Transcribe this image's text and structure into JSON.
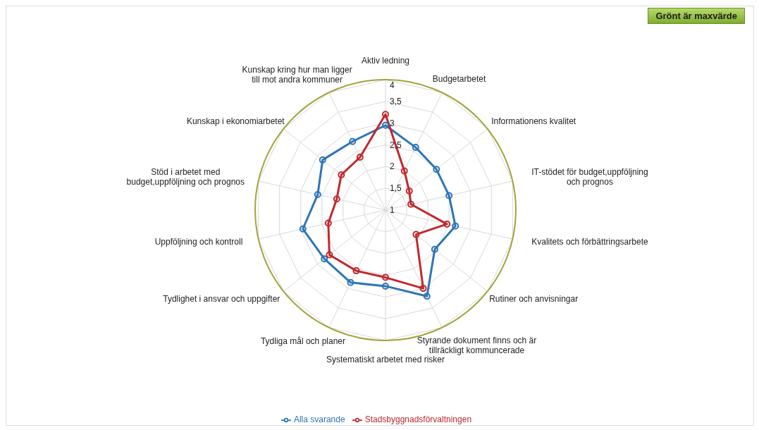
{
  "chart_data": {
    "type": "radar",
    "categories": [
      "Aktiv ledning",
      "Budgetarbetet",
      "Informationens kvalitet",
      "IT-stödet för budget,uppföljning och prognos",
      "Kvalitets och förbättringsarbete",
      "Rutiner och anvisningar",
      "Styrande dokument finns och  är tillräckligt kommuncerade",
      "Systematiskt arbetet med risker",
      "Tydliga mål och planer",
      "Tydlighet i ansvar och uppgifter",
      "Uppföljning och kontroll",
      "Stöd i arbetet med budget,uppföljning och prognos",
      "Kunskap i ekonomiarbetet",
      "Kunskap kring hur man ligger till mot andra kommuner"
    ],
    "series": [
      {
        "name": "Alla svarande",
        "color": "#2e75b6",
        "values": [
          2.95,
          2.6,
          2.5,
          2.5,
          2.65,
          2.45,
          3.2,
          2.75,
          2.85,
          2.8,
          2.95,
          2.6,
          2.85,
          2.75
        ]
      },
      {
        "name": "Stadsbyggnadsförvaltningen",
        "color": "#c0282d",
        "values": [
          3.2,
          2.0,
          1.7,
          1.6,
          2.45,
          1.9,
          3.0,
          2.55,
          2.55,
          2.65,
          2.35,
          2.15,
          2.3,
          2.35
        ]
      }
    ],
    "ylim": [
      1,
      4
    ],
    "yticks": [
      1,
      {
        "value": 1.5,
        "label": "1,5"
      },
      2,
      {
        "value": 2.5,
        "label": "2,5"
      },
      3,
      {
        "value": 3.5,
        "label": "3,5"
      },
      4
    ],
    "grid": true,
    "marker": "circle",
    "legend": "bottom",
    "annotations": [
      "Grönt är maxvärde"
    ]
  }
}
